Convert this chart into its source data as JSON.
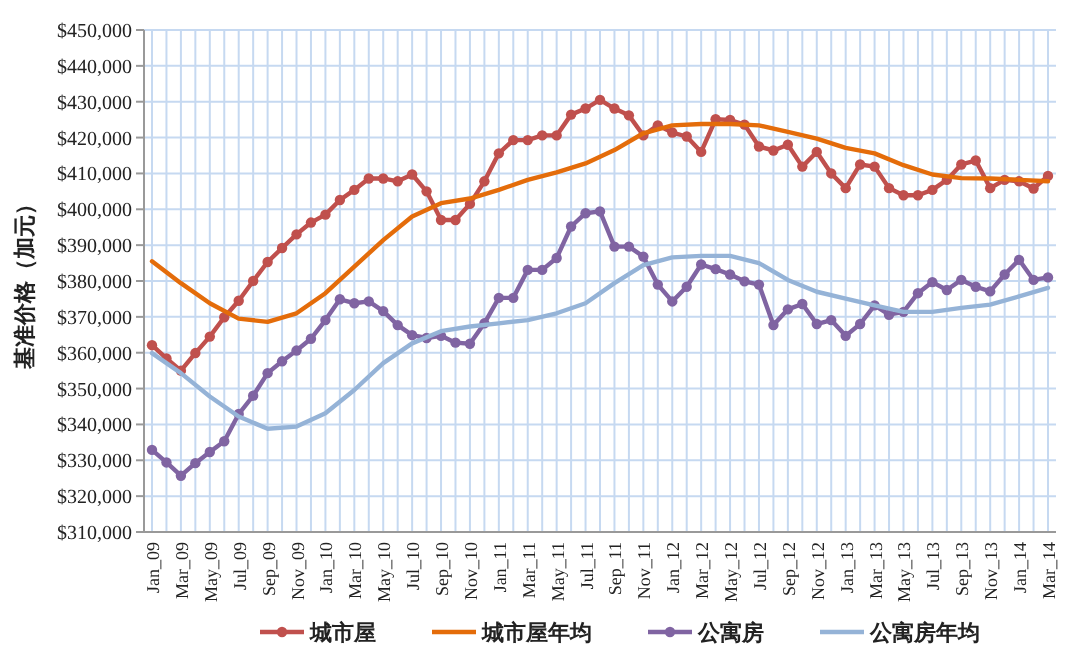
{
  "chart_data": {
    "type": "line",
    "ylabel": "基准价格（加元）",
    "legend": "bottom",
    "grid": true,
    "categories": [
      "Jan_09",
      null,
      "Mar_09",
      null,
      "May_09",
      null,
      "Jul_09",
      null,
      "Sep_09",
      null,
      "Nov_09",
      null,
      "Jan_10",
      null,
      "Mar_10",
      null,
      "May_10",
      null,
      "Jul_10",
      null,
      "Sep_10",
      null,
      "Nov_10",
      null,
      "Jan_11",
      null,
      "Mar_11",
      null,
      "May_11",
      null,
      "Jul_11",
      null,
      "Sep_11",
      null,
      "Nov_11",
      null,
      "Jan_12",
      null,
      "Mar_12",
      null,
      "May_12",
      null,
      "Jul_12",
      null,
      "Sep_12",
      null,
      "Nov_12",
      null,
      "Jan_13",
      null,
      "Mar_13",
      null,
      "May_13",
      null,
      "Jul_13",
      null,
      "Sep_13",
      null,
      "Nov_13",
      null,
      "Jan_14",
      null,
      "Mar_14"
    ],
    "ylim": [
      310000,
      450000
    ],
    "yticks": [
      {
        "value": 310000,
        "label": "$310,000"
      },
      {
        "value": 320000,
        "label": "$320,000"
      },
      {
        "value": 330000,
        "label": "$330,000"
      },
      {
        "value": 340000,
        "label": "$340,000"
      },
      {
        "value": 350000,
        "label": "$350,000"
      },
      {
        "value": 360000,
        "label": "$360,000"
      },
      {
        "value": 370000,
        "label": "$370,000"
      },
      {
        "value": 380000,
        "label": "$380,000"
      },
      {
        "value": 390000,
        "label": "$390,000"
      },
      {
        "value": 400000,
        "label": "$400,000"
      },
      {
        "value": 410000,
        "label": "$410,000"
      },
      {
        "value": 420000,
        "label": "$420,000"
      },
      {
        "value": 430000,
        "label": "$430,000"
      },
      {
        "value": 440000,
        "label": "$440,000"
      },
      {
        "value": 450000,
        "label": "$450,000"
      }
    ],
    "series": [
      {
        "name": "城市屋",
        "color": "#c0504d",
        "marker": "circle",
        "values": [
          362100,
          358400,
          355000,
          359900,
          364500,
          369900,
          374500,
          380000,
          385300,
          389200,
          393000,
          396300,
          398500,
          402600,
          405400,
          408600,
          408600,
          407800,
          409700,
          405000,
          397000,
          397000,
          401500,
          407800,
          415600,
          419300,
          419300,
          420600,
          420600,
          426400,
          428100,
          430500,
          428100,
          426200,
          420600,
          423400,
          421400,
          420300,
          416000,
          425100,
          424900,
          423600,
          417500,
          416400,
          418000,
          411900,
          416000,
          410000,
          405900,
          412500,
          411900,
          405900,
          403900,
          403900,
          405400,
          408200,
          412500,
          413600,
          405900,
          408200,
          407800,
          405800,
          409300
        ]
      },
      {
        "name": "城市屋年均",
        "color": "#e46c0a",
        "marker": "none",
        "x": [
          "Jan_09",
          "Mar_09",
          "May_09",
          "Jul_09",
          "Sep_09",
          "Nov_09",
          "Jan_10",
          "Mar_10",
          "May_10",
          "Jul_10",
          "Sep_10",
          "Nov_10",
          "Jan_11",
          "Mar_11",
          "May_11",
          "Jul_11",
          "Sep_11",
          "Nov_11",
          "Jan_12",
          "Mar_12",
          "May_12",
          "Jul_12",
          "Sep_12",
          "Nov_12",
          "Jan_13",
          "Mar_13",
          "May_13",
          "Jul_13",
          "Sep_13",
          "Nov_13",
          "Jan_14",
          "Mar_14"
        ],
        "values": [
          385500,
          379400,
          373800,
          369500,
          368600,
          371000,
          376600,
          384000,
          391400,
          398000,
          401700,
          403000,
          405400,
          408200,
          410300,
          412800,
          416500,
          421200,
          423400,
          423800,
          423800,
          423400,
          421600,
          419700,
          417100,
          415600,
          412300,
          409700,
          408700,
          408600,
          408200,
          407800
        ]
      },
      {
        "name": "公寓房",
        "color": "#8064a2",
        "marker": "circle",
        "values": [
          332900,
          329400,
          325700,
          329200,
          332300,
          335300,
          342900,
          348000,
          354300,
          357600,
          360600,
          363900,
          369100,
          374900,
          373800,
          374300,
          371600,
          367700,
          364900,
          364100,
          364700,
          362800,
          362500,
          368200,
          375300,
          375300,
          383100,
          383100,
          386400,
          395200,
          398900,
          399400,
          389600,
          389600,
          386800,
          379000,
          374300,
          378400,
          384600,
          383300,
          381800,
          379900,
          379000,
          367700,
          372100,
          373600,
          368000,
          369100,
          364700,
          368000,
          373200,
          370600,
          371400,
          376600,
          379700,
          377500,
          380300,
          378400,
          377100,
          381800,
          385900,
          380300,
          381000
        ]
      },
      {
        "name": "公寓房年均",
        "color": "#95b3d7",
        "marker": "none",
        "x": [
          "Jan_09",
          "Mar_09",
          "May_09",
          "Jul_09",
          "Sep_09",
          "Nov_09",
          "Jan_10",
          "Mar_10",
          "May_10",
          "Jul_10",
          "Sep_10",
          "Nov_10",
          "Jan_11",
          "Mar_11",
          "May_11",
          "Jul_11",
          "Sep_11",
          "Nov_11",
          "Jan_12",
          "Mar_12",
          "May_12",
          "Jul_12",
          "Sep_12",
          "Nov_12",
          "Jan_13",
          "Mar_13",
          "May_13",
          "Jul_13",
          "Sep_13",
          "Nov_13",
          "Jan_14",
          "Mar_14"
        ],
        "values": [
          359900,
          354300,
          347800,
          342200,
          338800,
          339400,
          343100,
          349600,
          357100,
          362600,
          366000,
          367300,
          368200,
          369100,
          371000,
          373800,
          379400,
          384400,
          386600,
          387000,
          387000,
          385000,
          380300,
          377000,
          375100,
          373200,
          371400,
          371400,
          372500,
          373400,
          375700,
          378100
        ]
      }
    ]
  }
}
